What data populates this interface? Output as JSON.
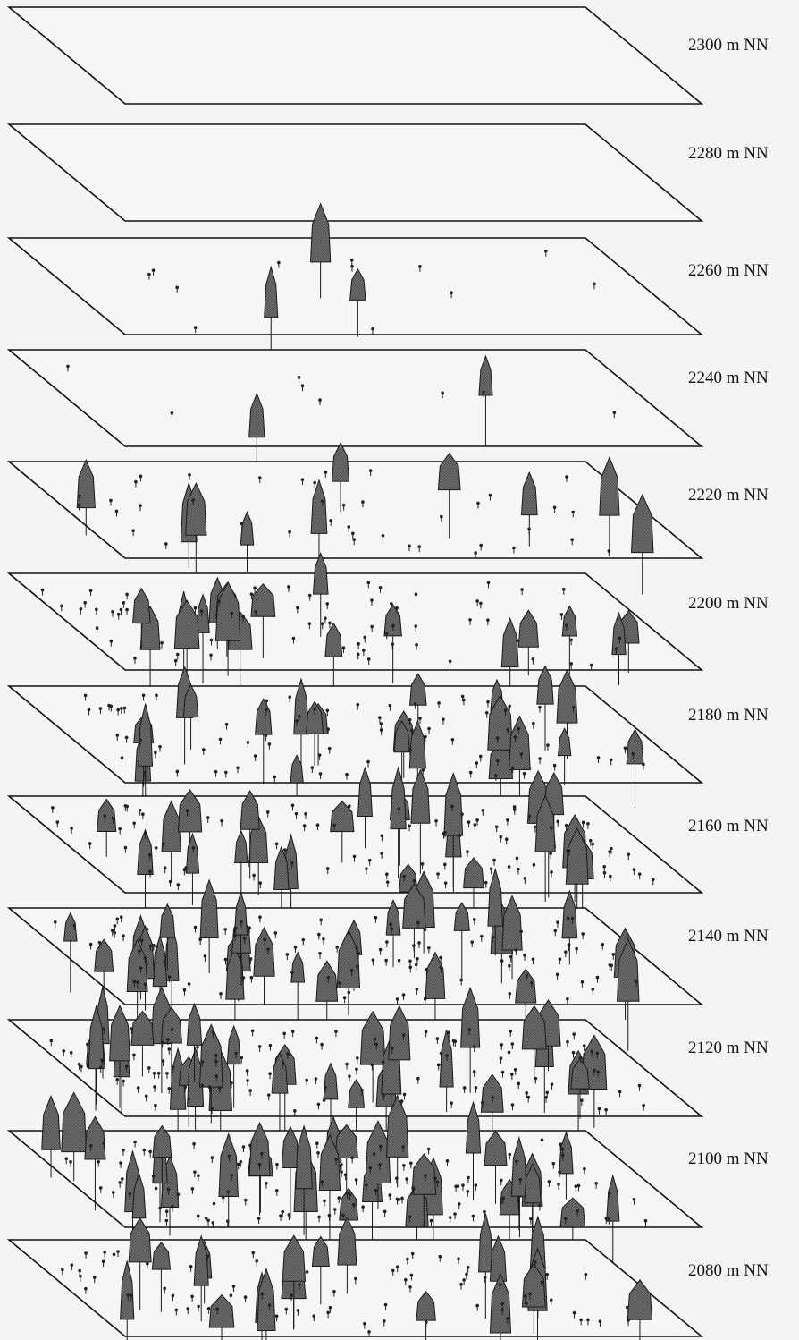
{
  "diagram": {
    "levels": [
      "2300 m NN",
      "2280 m NN",
      "2260 m NN",
      "2240 m NN",
      "2220 m NN",
      "2200 m NN",
      "2180 m NN",
      "2160 m NN",
      "2140 m NN",
      "2120 m NN",
      "2100 m NN",
      "2080 m NN"
    ],
    "colors": {
      "tree_fill": "#6e6e6e",
      "tree_stroke": "#1a1a1a",
      "plane_stroke": "#111111",
      "plane_fill": "#f6f6f4"
    },
    "tree_density_by_level": [
      0,
      0,
      3,
      2,
      10,
      18,
      22,
      26,
      30,
      32,
      34,
      20
    ]
  }
}
